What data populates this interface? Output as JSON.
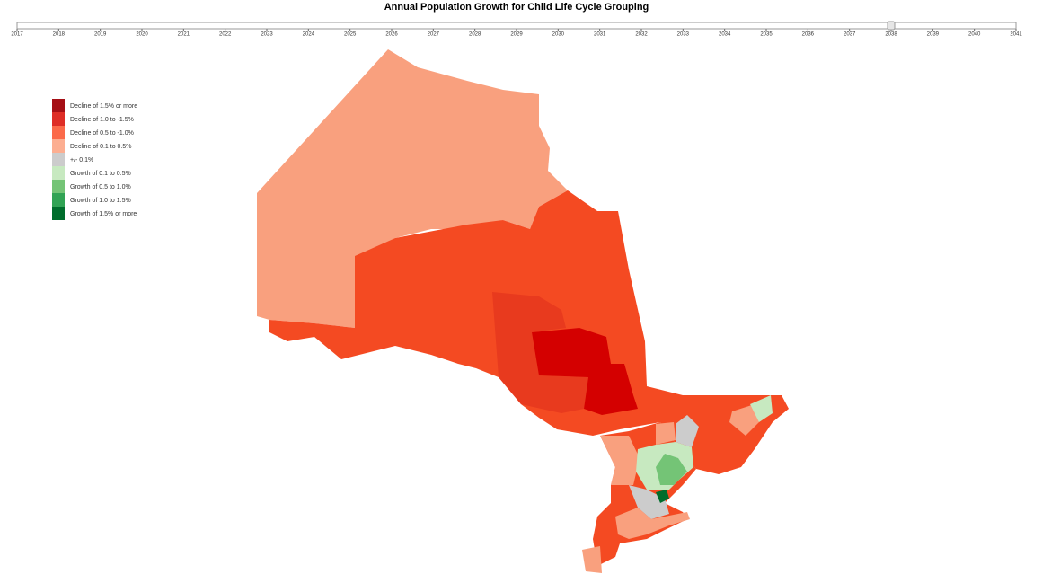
{
  "title": "Annual Population Growth for Child Life Cycle Grouping",
  "slider": {
    "ticks": [
      2017,
      2018,
      2019,
      2020,
      2021,
      2022,
      2023,
      2024,
      2025,
      2026,
      2027,
      2028,
      2029,
      2030,
      2031,
      2032,
      2033,
      2034,
      2035,
      2036,
      2037,
      2038,
      2039,
      2040,
      2041
    ],
    "value": 2038
  },
  "legend": [
    {
      "label": "Decline of 1.5% or more",
      "color": "#a50f15"
    },
    {
      "label": "Decline of 1.0 to -1.5%",
      "color": "#de2d26"
    },
    {
      "label": "Decline of 0.5 to -1.0%",
      "color": "#fb6a4a"
    },
    {
      "label": "Decline of 0.1 to 0.5%",
      "color": "#fcae91"
    },
    {
      "label": "+/- 0.1%",
      "color": "#cccccc"
    },
    {
      "label": "Growth of 0.1 to 0.5%",
      "color": "#c7e9c0"
    },
    {
      "label": "Growth of 0.5 to 1.0%",
      "color": "#74c476"
    },
    {
      "label": "Growth of 1.0 to 1.5%",
      "color": "#31a354"
    },
    {
      "label": "Growth of 1.5% or more",
      "color": "#006d2c"
    }
  ]
}
